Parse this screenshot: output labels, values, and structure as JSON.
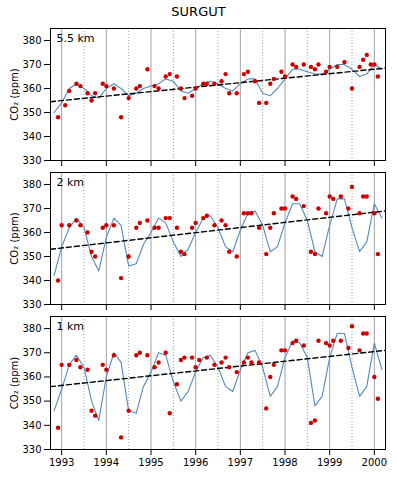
{
  "chart_data": [
    {
      "type": "line",
      "title": "SURGUT",
      "ylabel": "CO₂ (ppm)",
      "annotations": [
        "5.5 km"
      ],
      "xlim": [
        1992.75,
        2000.25
      ],
      "xticks": [
        1993,
        1994,
        1995,
        1996,
        1997,
        1998,
        1999,
        2000
      ],
      "ylim": [
        330,
        385
      ],
      "yticks": [
        330,
        340,
        350,
        360,
        370,
        380
      ],
      "tick_labels": "y",
      "series": [
        {
          "type": "vline",
          "color": "#888888",
          "line_style": "solid",
          "x": [
            1993,
            1994,
            1995,
            1996,
            1997,
            1998,
            1999,
            2000
          ]
        },
        {
          "type": "vline",
          "color": "#888888",
          "line_style": "dotted",
          "x": [
            1993.5,
            1994.5,
            1995.5,
            1996.5,
            1997.5,
            1998.5,
            1999.5
          ]
        },
        {
          "type": "line",
          "color": "#5588bb",
          "line_style": "solid",
          "x": [
            1992.83,
            1993.0,
            1993.17,
            1993.33,
            1993.5,
            1993.67,
            1993.83,
            1994.0,
            1994.17,
            1994.33,
            1994.5,
            1994.67,
            1994.83,
            1995.0,
            1995.17,
            1995.33,
            1995.5,
            1995.67,
            1995.83,
            1996.0,
            1996.17,
            1996.33,
            1996.5,
            1996.67,
            1996.83,
            1997.0,
            1997.17,
            1997.33,
            1997.5,
            1997.67,
            1997.83,
            1998.0,
            1998.17,
            1998.33,
            1998.5,
            1998.67,
            1998.83,
            1999.0,
            1999.17,
            1999.33,
            1999.5,
            1999.67,
            1999.83,
            2000.0,
            2000.17
          ],
          "values": [
            350,
            354,
            360,
            362,
            360,
            357,
            356,
            360,
            362,
            360,
            357,
            358,
            360,
            361,
            362,
            364,
            363,
            359,
            358,
            360,
            362,
            363,
            362,
            360,
            359,
            362,
            364,
            364,
            358,
            357,
            360,
            364,
            368,
            368,
            367,
            366,
            366,
            368,
            370,
            370,
            368,
            365,
            366,
            370,
            368
          ]
        },
        {
          "type": "line",
          "color": "black",
          "line_style": "dashed",
          "x": [
            1992.75,
            2000.25
          ],
          "values": [
            354.5,
            368.5
          ]
        },
        {
          "type": "scatter",
          "color": "#cc0000",
          "marker": "circle",
          "x": [
            1992.92,
            1993.08,
            1993.17,
            1993.33,
            1993.42,
            1993.58,
            1993.67,
            1993.75,
            1993.92,
            1994.0,
            1994.17,
            1994.33,
            1994.5,
            1994.67,
            1994.75,
            1994.92,
            1995.08,
            1995.17,
            1995.33,
            1995.42,
            1995.58,
            1995.67,
            1995.75,
            1995.92,
            1996.0,
            1996.17,
            1996.25,
            1996.42,
            1996.58,
            1996.67,
            1996.75,
            1996.92,
            1997.08,
            1997.17,
            1997.33,
            1997.42,
            1997.58,
            1997.67,
            1997.75,
            1997.92,
            1998.0,
            1998.17,
            1998.25,
            1998.42,
            1998.58,
            1998.67,
            1998.75,
            1998.92,
            1999.0,
            1999.17,
            1999.33,
            1999.5,
            1999.67,
            1999.75,
            1999.83,
            1999.92,
            2000.0,
            2000.08
          ],
          "values": [
            348,
            353,
            359,
            362,
            361,
            358,
            355,
            358,
            362,
            361,
            360,
            348,
            356,
            360,
            361,
            368,
            361,
            360,
            365,
            366,
            365,
            360,
            356,
            357,
            360,
            362,
            362,
            362,
            363,
            366,
            358,
            358,
            366,
            367,
            363,
            354,
            354,
            362,
            364,
            367,
            365,
            370,
            369,
            370,
            369,
            368,
            370,
            367,
            369,
            369,
            371,
            360,
            369,
            372,
            374,
            370,
            370,
            365
          ]
        }
      ]
    },
    {
      "type": "line",
      "ylabel": "CO₂ (ppm)",
      "annotations": [
        "2 km"
      ],
      "xlim": [
        1992.75,
        2000.25
      ],
      "xticks": [
        1993,
        1994,
        1995,
        1996,
        1997,
        1998,
        1999,
        2000
      ],
      "ylim": [
        330,
        385
      ],
      "yticks": [
        330,
        340,
        350,
        360,
        370,
        380
      ],
      "tick_labels": "y",
      "series": [
        {
          "type": "vline",
          "color": "#888888",
          "line_style": "solid",
          "x": [
            1993,
            1994,
            1995,
            1996,
            1997,
            1998,
            1999,
            2000
          ]
        },
        {
          "type": "vline",
          "color": "#888888",
          "line_style": "dotted",
          "x": [
            1993.5,
            1994.5,
            1995.5,
            1996.5,
            1997.5,
            1998.5,
            1999.5
          ]
        },
        {
          "type": "line",
          "color": "#5588bb",
          "line_style": "solid",
          "x": [
            1992.83,
            1993.0,
            1993.17,
            1993.33,
            1993.5,
            1993.67,
            1993.83,
            1994.0,
            1994.17,
            1994.33,
            1994.5,
            1994.67,
            1994.83,
            1995.0,
            1995.17,
            1995.33,
            1995.5,
            1995.67,
            1995.83,
            1996.0,
            1996.17,
            1996.33,
            1996.5,
            1996.67,
            1996.83,
            1997.0,
            1997.17,
            1997.33,
            1997.5,
            1997.67,
            1997.83,
            1998.0,
            1998.17,
            1998.33,
            1998.5,
            1998.67,
            1998.83,
            1999.0,
            1999.17,
            1999.33,
            1999.5,
            1999.67,
            1999.83,
            2000.0,
            2000.17
          ],
          "values": [
            342,
            354,
            362,
            366,
            362,
            350,
            344,
            358,
            366,
            363,
            346,
            347,
            355,
            360,
            366,
            364,
            356,
            350,
            353,
            360,
            366,
            367,
            362,
            354,
            352,
            361,
            368,
            369,
            363,
            352,
            354,
            364,
            372,
            372,
            365,
            352,
            350,
            363,
            374,
            374,
            362,
            352,
            356,
            372,
            366
          ]
        },
        {
          "type": "line",
          "color": "black",
          "line_style": "dashed",
          "x": [
            1992.75,
            2000.25
          ],
          "values": [
            353,
            369
          ]
        },
        {
          "type": "scatter",
          "color": "#cc0000",
          "marker": "circle",
          "x": [
            1992.92,
            1993.0,
            1993.17,
            1993.33,
            1993.42,
            1993.58,
            1993.67,
            1993.75,
            1993.92,
            1994.0,
            1994.17,
            1994.33,
            1994.5,
            1994.67,
            1994.75,
            1994.92,
            1995.08,
            1995.17,
            1995.33,
            1995.42,
            1995.58,
            1995.67,
            1995.75,
            1995.92,
            1996.0,
            1996.17,
            1996.25,
            1996.42,
            1996.58,
            1996.67,
            1996.75,
            1996.92,
            1997.08,
            1997.17,
            1997.25,
            1997.42,
            1997.58,
            1997.67,
            1997.75,
            1997.92,
            1998.0,
            1998.17,
            1998.25,
            1998.42,
            1998.58,
            1998.67,
            1998.75,
            1998.92,
            1999.0,
            1999.08,
            1999.25,
            1999.42,
            1999.5,
            1999.67,
            1999.75,
            1999.83,
            2000.0,
            2000.08
          ],
          "values": [
            340,
            363,
            363,
            365,
            363,
            360,
            352,
            350,
            362,
            363,
            363,
            341,
            350,
            362,
            364,
            365,
            362,
            362,
            366,
            366,
            362,
            352,
            351,
            362,
            364,
            366,
            367,
            363,
            365,
            363,
            352,
            350,
            368,
            368,
            368,
            362,
            351,
            362,
            368,
            370,
            370,
            375,
            374,
            371,
            352,
            351,
            370,
            368,
            375,
            374,
            375,
            370,
            379,
            368,
            375,
            375,
            368,
            351
          ]
        }
      ]
    },
    {
      "type": "line",
      "ylabel": "CO₂ (ppm)",
      "annotations": [
        "1 km"
      ],
      "xlim": [
        1992.75,
        2000.25
      ],
      "xticks": [
        1993,
        1994,
        1995,
        1996,
        1997,
        1998,
        1999,
        2000
      ],
      "ylim": [
        330,
        385
      ],
      "yticks": [
        330,
        340,
        350,
        360,
        370,
        380
      ],
      "series": [
        {
          "type": "vline",
          "color": "#888888",
          "line_style": "solid",
          "x": [
            1993,
            1994,
            1995,
            1996,
            1997,
            1998,
            1999,
            2000
          ]
        },
        {
          "type": "vline",
          "color": "#888888",
          "line_style": "dotted",
          "x": [
            1993.5,
            1994.5,
            1995.5,
            1996.5,
            1997.5,
            1998.5,
            1999.5
          ]
        },
        {
          "type": "line",
          "color": "#5588bb",
          "line_style": "solid",
          "x": [
            1992.83,
            1993.0,
            1993.17,
            1993.33,
            1993.5,
            1993.67,
            1993.83,
            1994.0,
            1994.17,
            1994.33,
            1994.5,
            1994.67,
            1994.83,
            1995.0,
            1995.17,
            1995.33,
            1995.5,
            1995.67,
            1995.83,
            1996.0,
            1996.17,
            1996.33,
            1996.5,
            1996.67,
            1996.83,
            1997.0,
            1997.17,
            1997.33,
            1997.5,
            1997.67,
            1997.83,
            1998.0,
            1998.17,
            1998.33,
            1998.5,
            1998.67,
            1998.83,
            1999.0,
            1999.17,
            1999.33,
            1999.5,
            1999.67,
            1999.83,
            2000.0,
            2000.17
          ],
          "values": [
            346,
            355,
            365,
            369,
            364,
            350,
            342,
            360,
            370,
            366,
            346,
            345,
            356,
            362,
            370,
            369,
            358,
            350,
            354,
            362,
            368,
            369,
            364,
            356,
            354,
            363,
            370,
            371,
            364,
            352,
            356,
            368,
            375,
            374,
            368,
            348,
            352,
            368,
            378,
            378,
            364,
            352,
            356,
            374,
            363
          ]
        },
        {
          "type": "line",
          "color": "black",
          "line_style": "dashed",
          "x": [
            1992.75,
            2000.25
          ],
          "values": [
            356,
            371
          ]
        },
        {
          "type": "scatter",
          "color": "#cc0000",
          "marker": "circle",
          "x": [
            1992.92,
            1993.0,
            1993.17,
            1993.33,
            1993.42,
            1993.58,
            1993.67,
            1993.75,
            1993.92,
            1994.0,
            1994.17,
            1994.33,
            1994.5,
            1994.67,
            1994.75,
            1994.92,
            1995.08,
            1995.17,
            1995.33,
            1995.42,
            1995.58,
            1995.67,
            1995.75,
            1995.92,
            1996.0,
            1996.08,
            1996.25,
            1996.42,
            1996.58,
            1996.67,
            1996.75,
            1996.92,
            1997.08,
            1997.17,
            1997.25,
            1997.42,
            1997.58,
            1997.67,
            1997.75,
            1997.92,
            1998.0,
            1998.17,
            1998.25,
            1998.42,
            1998.58,
            1998.67,
            1998.75,
            1998.92,
            1999.0,
            1999.08,
            1999.25,
            1999.42,
            1999.5,
            1999.67,
            1999.75,
            1999.83,
            2000.0,
            2000.08
          ],
          "values": [
            339,
            365,
            365,
            367,
            364,
            363,
            346,
            344,
            365,
            363,
            369,
            335,
            346,
            369,
            370,
            369,
            364,
            366,
            370,
            345,
            357,
            367,
            368,
            368,
            364,
            367,
            368,
            365,
            366,
            368,
            364,
            362,
            366,
            368,
            366,
            366,
            347,
            360,
            365,
            371,
            371,
            374,
            375,
            373,
            341,
            342,
            375,
            374,
            373,
            375,
            375,
            372,
            381,
            371,
            378,
            378,
            360,
            351
          ]
        }
      ]
    }
  ]
}
